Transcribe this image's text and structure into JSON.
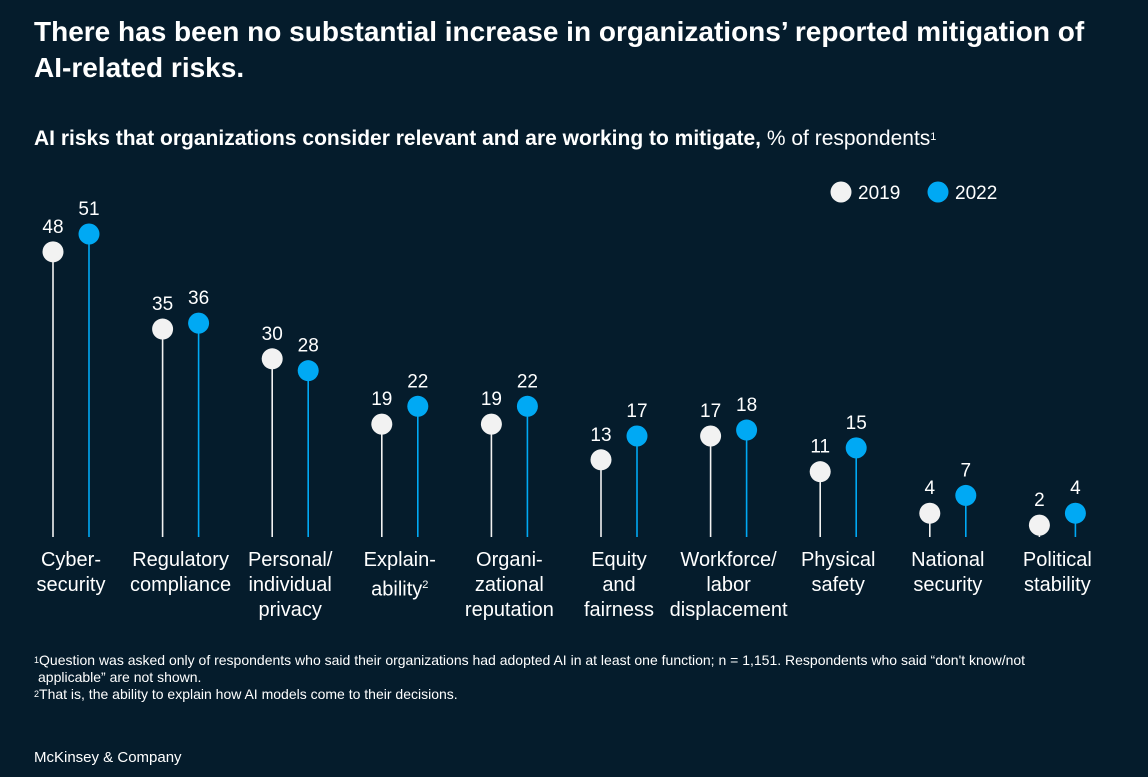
{
  "headline": "There has been no substantial increase in organizations’ reported mitigation of AI-related risks.",
  "subtitle": {
    "bold": "AI risks that organizations consider relevant and are working to mitigate,",
    "unit": " % of respondents",
    "footnote_mark": "1"
  },
  "colors": {
    "background": "#051C2C",
    "series_2019": "#F2F2F2",
    "series_2022": "#00A9F4",
    "text": "#FFFFFF"
  },
  "chart_data": {
    "type": "lollipop",
    "categories": [
      "Cyber-\nsecurity",
      "Regulatory\ncompliance",
      "Personal/\nindividual\nprivacy",
      "Explain-\nability",
      "Organi-\nzational\nreputation",
      "Equity\nand\nfairness",
      "Workforce/\nlabor\ndisplacement",
      "Physical\nsafety",
      "National\nsecurity",
      "Political\nstability"
    ],
    "category_footnotes": [
      "",
      "",
      "",
      "2",
      "",
      "",
      "",
      "",
      "",
      ""
    ],
    "series": [
      {
        "name": "2019",
        "color": "#F2F2F2",
        "values": [
          48,
          35,
          30,
          19,
          19,
          13,
          17,
          11,
          4,
          2
        ]
      },
      {
        "name": "2022",
        "color": "#00A9F4",
        "values": [
          51,
          36,
          28,
          22,
          22,
          17,
          18,
          15,
          7,
          4
        ]
      }
    ],
    "ylim": [
      0,
      51
    ],
    "legend": "top-right",
    "grid": false
  },
  "footnotes": {
    "note1_mark": "1",
    "note1_line1": "Question was asked only of respondents who said their organizations had adopted AI in at least one function; n = 1,151. Respondents who said “don't know/not",
    "note1_line2": "applicable” are not shown.",
    "note2_mark": "2",
    "note2": "That is, the ability to explain how AI models come to their decisions."
  },
  "brand": "McKinsey & Company"
}
